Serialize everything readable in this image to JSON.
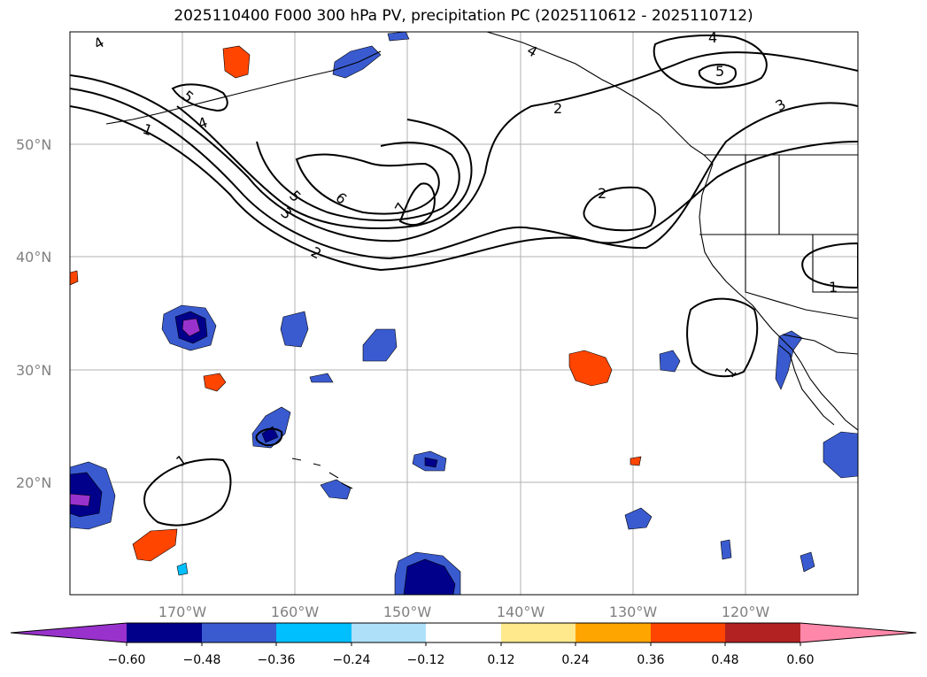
{
  "title": "2025110400 F000 300 hPa PV, precipitation PC (2025110612 - 2025110712)",
  "map": {
    "lat_labels": [
      "50°N",
      "40°N",
      "30°N",
      "20°N"
    ],
    "lon_labels": [
      "170°W",
      "160°W",
      "150°W",
      "140°W",
      "130°W",
      "120°W"
    ],
    "contour_labels": [
      "4",
      "5",
      "4",
      "1",
      "5",
      "6",
      "7",
      "3",
      "2",
      "2",
      "4",
      "2",
      "5",
      "3",
      "4",
      "1",
      "1",
      "1"
    ]
  },
  "colorbar": {
    "ticks": [
      "−0.60",
      "−0.48",
      "−0.36",
      "−0.24",
      "−0.12",
      "0.12",
      "0.24",
      "0.36",
      "0.48",
      "0.60"
    ],
    "colors": {
      "under": "#9932cc",
      "neg060": "#00008b",
      "neg048": "#3a5bd0",
      "neg036": "#00bfff",
      "neg024": "#aee0fa",
      "neutral": "#ffffff",
      "pos012": "#ffe98c",
      "pos024": "#ffa500",
      "pos036": "#ff4500",
      "pos048": "#b22222",
      "over": "#ff88aa"
    }
  }
}
